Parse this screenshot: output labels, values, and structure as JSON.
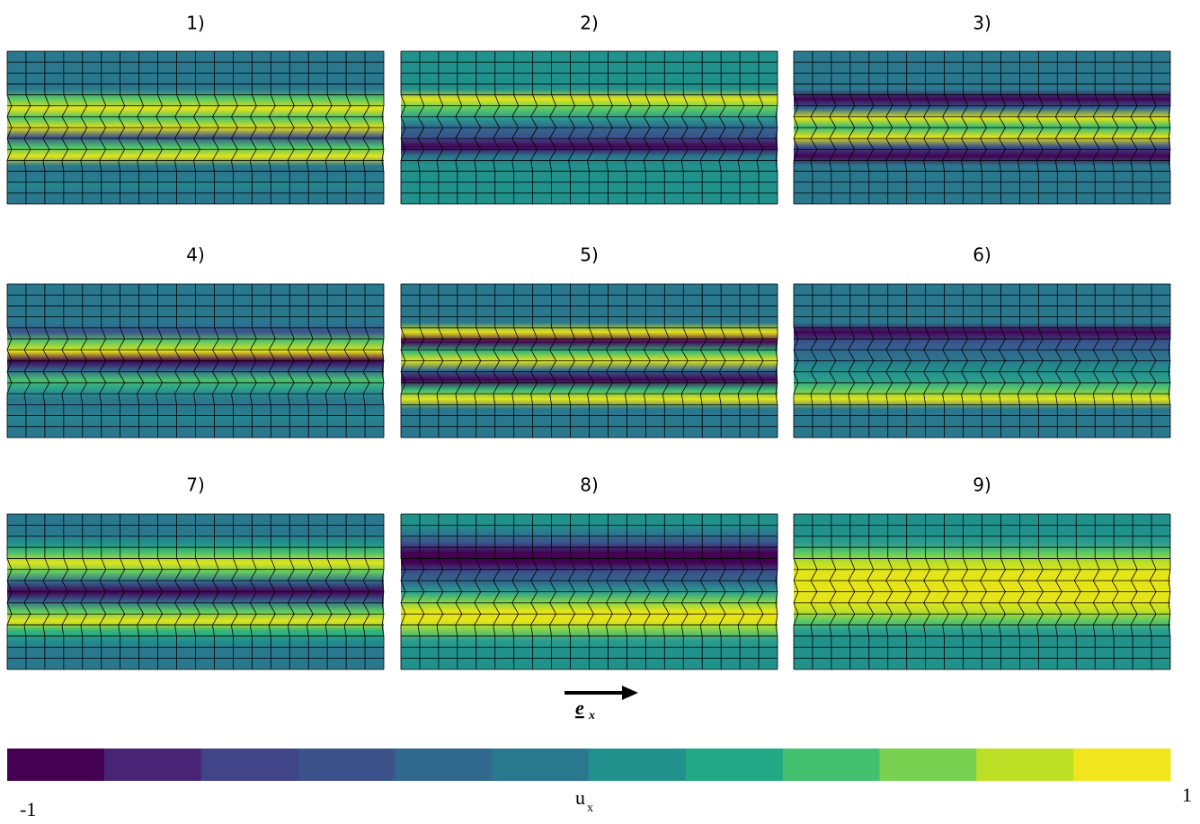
{
  "panels": [
    {
      "label": "1)",
      "field": [
        "#2a788e",
        "#2a788e",
        "#2a788e",
        "#2a788e",
        "#2a788e",
        "#5ec962",
        "#e5e419",
        "#4ac16d",
        "#e5e419",
        "#3b528b",
        "#4ac16d",
        "#e5e419",
        "#2a788e",
        "#2a788e",
        "#25858e",
        "#2a788e",
        "#2a788e"
      ]
    },
    {
      "label": "2)",
      "field": [
        "#21918c",
        "#21918c",
        "#21918c",
        "#21918c",
        "#21918c",
        "#e5e419",
        "#5ec962",
        "#2a9d8f",
        "#31688e",
        "#3b528b",
        "#440154",
        "#2a788e",
        "#21918c",
        "#21918c",
        "#21918c",
        "#21918c",
        "#21918c"
      ]
    },
    {
      "label": "3)",
      "field": [
        "#2a788e",
        "#2a788e",
        "#2a788e",
        "#2a788e",
        "#2a788e",
        "#440154",
        "#31688e",
        "#e5e419",
        "#35b779",
        "#e5e419",
        "#3b528b",
        "#440154",
        "#2a788e",
        "#2a788e",
        "#2a788e",
        "#2a788e",
        "#2a788e"
      ]
    },
    {
      "label": "4)",
      "field": [
        "#2a788e",
        "#2a788e",
        "#2a788e",
        "#2a788e",
        "#2a788e",
        "#3b528b",
        "#5ec962",
        "#e5e419",
        "#440154",
        "#31688e",
        "#4ac16d",
        "#2a9d8f",
        "#2a788e",
        "#2a788e",
        "#25858e",
        "#2a788e",
        "#2a788e"
      ]
    },
    {
      "label": "5)",
      "field": [
        "#2a788e",
        "#2a788e",
        "#2a788e",
        "#2a788e",
        "#2a788e",
        "#e5e419",
        "#440154",
        "#35b779",
        "#e5e419",
        "#31688e",
        "#440154",
        "#35b779",
        "#e5e419",
        "#2a788e",
        "#2a788e",
        "#2a788e",
        "#2a788e"
      ]
    },
    {
      "label": "6)",
      "field": [
        "#2a788e",
        "#2a788e",
        "#2a788e",
        "#2a788e",
        "#2a788e",
        "#440154",
        "#3b528b",
        "#31688e",
        "#2a788e",
        "#21918c",
        "#2a9d8f",
        "#5ec962",
        "#e5e419",
        "#2a788e",
        "#2a788e",
        "#2a788e",
        "#2a788e"
      ]
    },
    {
      "label": "7)",
      "field": [
        "#2a788e",
        "#2a788e",
        "#2a788e",
        "#21918c",
        "#4ac16d",
        "#e5e419",
        "#5ec962",
        "#31688e",
        "#440154",
        "#31688e",
        "#5ec962",
        "#e5e419",
        "#35b779",
        "#21918c",
        "#2a788e",
        "#2a788e",
        "#2a788e"
      ]
    },
    {
      "label": "8)",
      "field": [
        "#21918c",
        "#21918c",
        "#2a788e",
        "#3b528b",
        "#440154",
        "#440154",
        "#3b528b",
        "#31688e",
        "#2a9d8f",
        "#7ad151",
        "#e5e419",
        "#e5e419",
        "#7ad151",
        "#2a9d8f",
        "#21918c",
        "#21918c",
        "#21918c"
      ]
    },
    {
      "label": "9)",
      "field": [
        "#21918c",
        "#21918c",
        "#21918c",
        "#2a9d8f",
        "#5ec962",
        "#bddf26",
        "#e5e419",
        "#e5e419",
        "#e5e419",
        "#e5e419",
        "#bddf26",
        "#5ec962",
        "#2a9d8f",
        "#21918c",
        "#21918c",
        "#21918c",
        "#21918c"
      ]
    }
  ],
  "arrow_label": "e",
  "arrow_label_sub": "x",
  "colorbar": {
    "min": "-1",
    "max": "1",
    "label": "u",
    "label_sub": "x",
    "colors": [
      "#440154",
      "#482475",
      "#414487",
      "#3b528b",
      "#31688e",
      "#2a788e",
      "#21918c",
      "#22a884",
      "#44bf70",
      "#7ad151",
      "#bddf26",
      "#f1e51d"
    ]
  }
}
